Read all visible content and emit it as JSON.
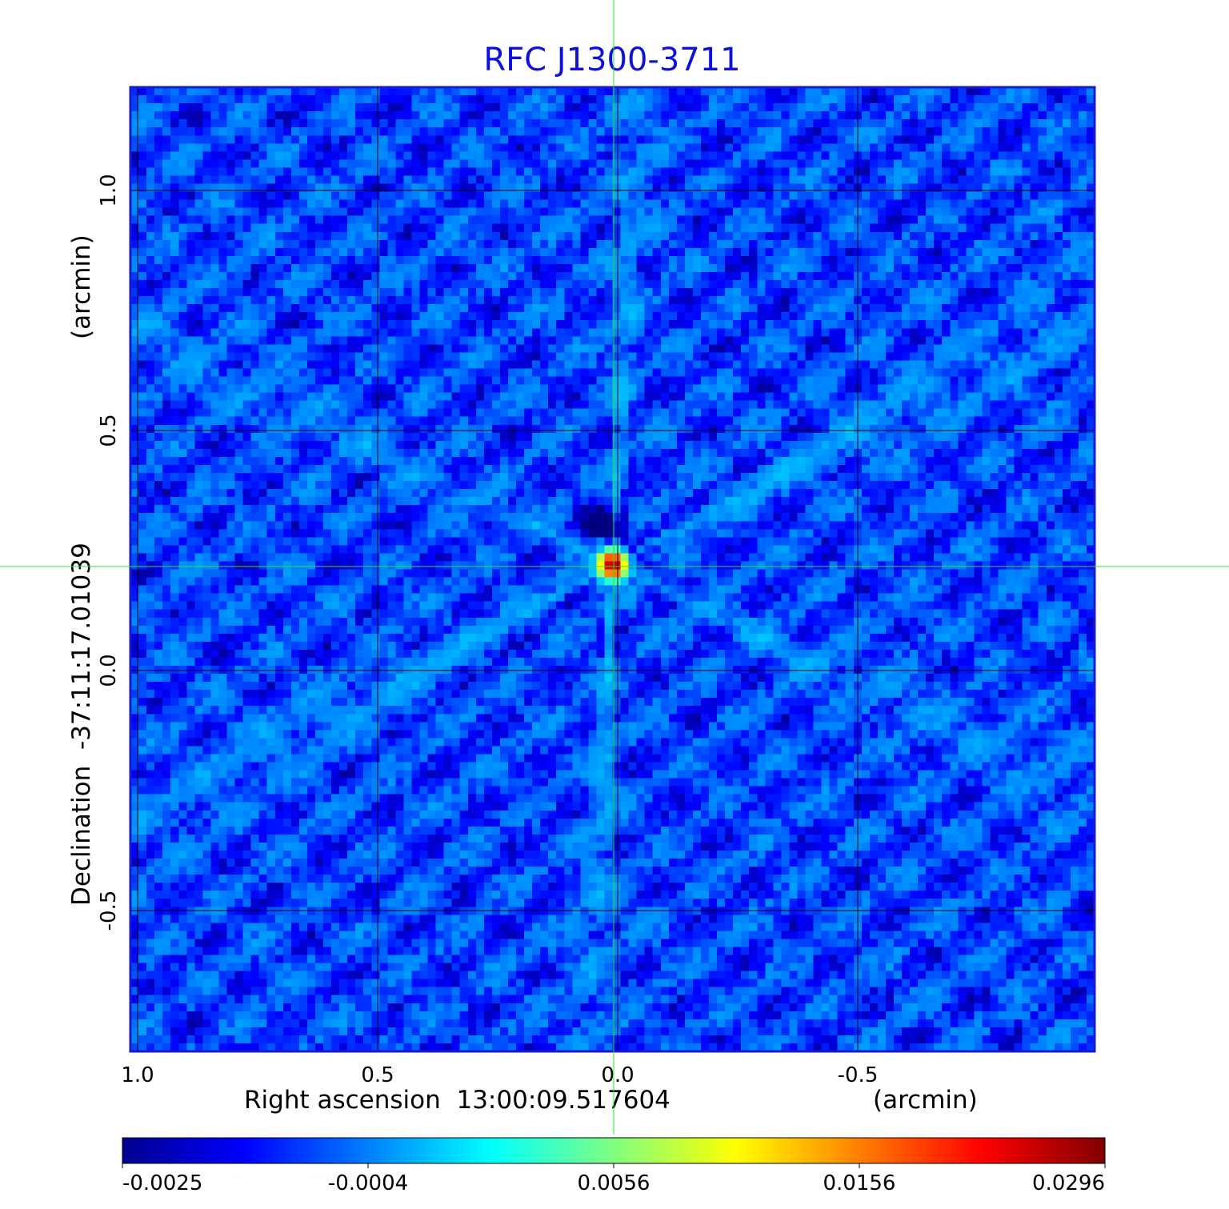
{
  "chart_data": {
    "type": "heatmap",
    "title": "RFC J1300-3711",
    "xlabel": "Right ascension  13:00:09.517604",
    "xunit": "(arcmin)",
    "ylabel": "Declination  -37:11:17.01039",
    "yunit": "(arcmin)",
    "x_ticks": [
      "1.0",
      "0.5",
      "0.0",
      "-0.5"
    ],
    "y_ticks": [
      "1.0",
      "0.5",
      "0.0",
      "-0.5"
    ],
    "colorbar_ticks": [
      "-0.0025",
      "-0.0004",
      "0.0056",
      "0.0156",
      "0.0296"
    ],
    "colormap": "jet",
    "grid": true,
    "peak": {
      "ra_offset_arcmin": 0.01,
      "dec_offset_arcmin": 0.22,
      "value": 0.0296
    },
    "background_level": -0.0009,
    "crosshair_color": "#33dd33",
    "frame_color": "#1a1acc"
  }
}
